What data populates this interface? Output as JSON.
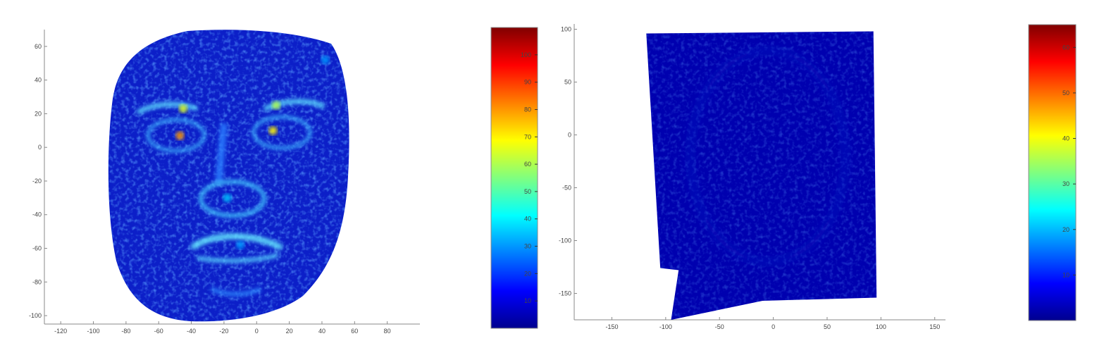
{
  "chart_data": [
    {
      "type": "heatmap",
      "title": "",
      "xlabel": "",
      "ylabel": "",
      "colormap": "jet",
      "xlim": [
        -130,
        100
      ],
      "ylim": [
        -105,
        70
      ],
      "xticks": [
        -120,
        -100,
        -80,
        -60,
        -40,
        -20,
        0,
        20,
        40,
        60,
        80
      ],
      "yticks": [
        60,
        40,
        20,
        0,
        -20,
        -40,
        -60,
        -80,
        -100
      ],
      "xtick_labels": [
        "-120",
        "-100",
        "-80",
        "-60",
        "-40",
        "-20",
        "0",
        "20",
        "40",
        "60",
        "80"
      ],
      "ytick_labels": [
        "60",
        "40",
        "20",
        "0",
        "-20",
        "-40",
        "-60",
        "-80",
        "-100"
      ],
      "colorbar": {
        "range": [
          0,
          110
        ],
        "ticks": [
          10,
          20,
          30,
          40,
          50,
          60,
          70,
          80,
          90,
          100
        ],
        "tick_labels": [
          "10",
          "20",
          "30",
          "40",
          "50",
          "60",
          "70",
          "80",
          "90",
          "100"
        ]
      },
      "background_value": 5,
      "hotspots": [
        {
          "x": -45,
          "y": 23,
          "value": 65
        },
        {
          "x": 12,
          "y": 25,
          "value": 60
        },
        {
          "x": -47,
          "y": 7,
          "value": 80
        },
        {
          "x": 10,
          "y": 10,
          "value": 70
        },
        {
          "x": -18,
          "y": -30,
          "value": 35
        },
        {
          "x": -10,
          "y": -58,
          "value": 30
        },
        {
          "x": 42,
          "y": 52,
          "value": 30
        }
      ]
    },
    {
      "type": "heatmap",
      "title": "",
      "xlabel": "",
      "ylabel": "",
      "colormap": "jet",
      "xlim": [
        -185,
        160
      ],
      "ylim": [
        -175,
        105
      ],
      "xticks": [
        -150,
        -100,
        -50,
        0,
        50,
        100,
        150
      ],
      "yticks": [
        100,
        50,
        0,
        -50,
        -100,
        -150
      ],
      "xtick_labels": [
        "-150",
        "-100",
        "-50",
        "0",
        "50",
        "100",
        "150"
      ],
      "ytick_labels": [
        "100",
        "50",
        "0",
        "-50",
        "-100",
        "-150"
      ],
      "colorbar": {
        "range": [
          0,
          65
        ],
        "ticks": [
          10,
          20,
          30,
          40,
          50,
          60
        ],
        "tick_labels": [
          "10",
          "20",
          "30",
          "40",
          "50",
          "60"
        ]
      },
      "background_value": 3,
      "region": [
        [
          -118,
          96
        ],
        [
          93,
          98
        ],
        [
          96,
          -154
        ],
        [
          -10,
          -157
        ],
        [
          -95,
          -175
        ],
        [
          -88,
          -128
        ],
        [
          -105,
          -126
        ],
        [
          -118,
          96
        ]
      ]
    }
  ]
}
